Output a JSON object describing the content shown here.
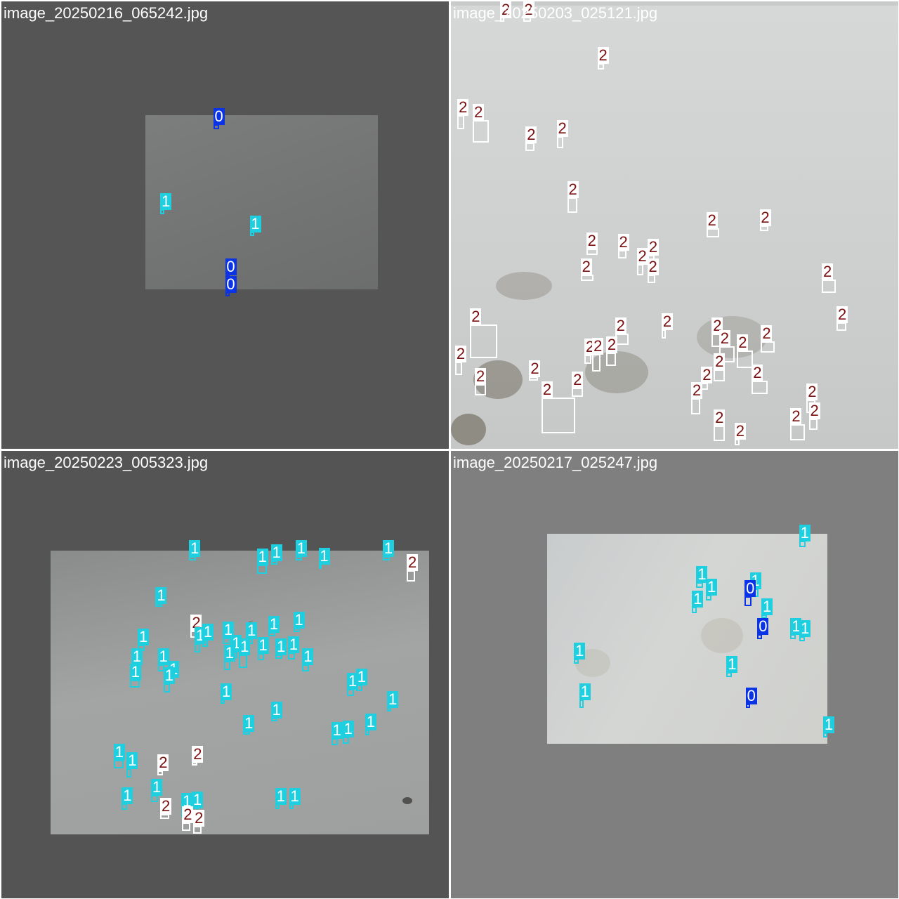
{
  "colors": {
    "class_0": "#0a33e6",
    "class_0_text": "#ffffff",
    "class_1": "#1ecfe0",
    "class_1_text": "#ffffff",
    "class_2": "#ffffff",
    "class_2_text": "#7a1010"
  },
  "mosaic": [
    {
      "filename": "image_20250216_065242.jpg",
      "detections": [
        {
          "cls": "0",
          "bx": 0.48,
          "by": 0.28,
          "bw": 0.013,
          "bh": 0.012
        },
        {
          "cls": "1",
          "bx": 0.36,
          "by": 0.47,
          "bw": 0.01,
          "bh": 0.01
        },
        {
          "cls": "1",
          "bx": 0.56,
          "by": 0.52,
          "bw": 0.01,
          "bh": 0.01
        },
        {
          "cls": "0",
          "bx": 0.505,
          "by": 0.615,
          "bw": 0.01,
          "bh": 0.01
        },
        {
          "cls": "0",
          "bx": 0.505,
          "by": 0.655,
          "bw": 0.01,
          "bh": 0.01
        }
      ]
    },
    {
      "filename": "image_20250203_025121.jpg",
      "detections": [
        {
          "cls": "2",
          "bx": 0.115,
          "by": 0.04,
          "bw": 0.01,
          "bh": 0.01
        },
        {
          "cls": "2",
          "bx": 0.17,
          "by": 0.04,
          "bw": 0.018,
          "bh": 0.012
        },
        {
          "cls": "2",
          "bx": 0.335,
          "by": 0.145,
          "bw": 0.015,
          "bh": 0.015
        },
        {
          "cls": "2",
          "bx": 0.022,
          "by": 0.27,
          "bw": 0.015,
          "bh": 0.03
        },
        {
          "cls": "2",
          "bx": 0.067,
          "by": 0.29,
          "bw": 0.036,
          "bh": 0.05
        },
        {
          "cls": "2",
          "bx": 0.177,
          "by": 0.325,
          "bw": 0.02,
          "bh": 0.02
        },
        {
          "cls": "2",
          "bx": 0.244,
          "by": 0.315,
          "bw": 0.015,
          "bh": 0.026
        },
        {
          "cls": "2",
          "bx": 0.271,
          "by": 0.455,
          "bw": 0.022,
          "bh": 0.035
        },
        {
          "cls": "2",
          "bx": 0.585,
          "by": 0.517,
          "bw": 0.028,
          "bh": 0.02
        },
        {
          "cls": "2",
          "bx": 0.7,
          "by": 0.507,
          "bw": 0.02,
          "bh": 0.013
        },
        {
          "cls": "2",
          "bx": 0.315,
          "by": 0.56,
          "bw": 0.025,
          "bh": 0.015
        },
        {
          "cls": "2",
          "bx": 0.447,
          "by": 0.575,
          "bw": 0.015,
          "bh": 0.015
        },
        {
          "cls": "2",
          "bx": 0.448,
          "by": 0.62,
          "bw": 0.018,
          "bh": 0.02
        },
        {
          "cls": "2",
          "bx": 0.304,
          "by": 0.618,
          "bw": 0.028,
          "bh": 0.015
        },
        {
          "cls": "2",
          "bx": 0.383,
          "by": 0.565,
          "bw": 0.02,
          "bh": 0.02
        },
        {
          "cls": "2",
          "bx": 0.423,
          "by": 0.6,
          "bw": 0.015,
          "bh": 0.025
        },
        {
          "cls": "2",
          "bx": 0.845,
          "by": 0.637,
          "bw": 0.032,
          "bh": 0.03
        },
        {
          "cls": "2",
          "bx": 0.873,
          "by": 0.727,
          "bw": 0.022,
          "bh": 0.02
        },
        {
          "cls": "2",
          "bx": 0.073,
          "by": 0.76,
          "bw": 0.06,
          "bh": 0.075
        },
        {
          "cls": "2",
          "bx": 0.382,
          "by": 0.755,
          "bw": 0.03,
          "bh": 0.025
        },
        {
          "cls": "2",
          "bx": 0.476,
          "by": 0.743,
          "bw": 0.01,
          "bh": 0.02
        },
        {
          "cls": "2",
          "bx": 0.593,
          "by": 0.757,
          "bw": 0.02,
          "bh": 0.03
        },
        {
          "cls": "2",
          "bx": 0.708,
          "by": 0.773,
          "bw": 0.03,
          "bh": 0.025
        },
        {
          "cls": "2",
          "bx": 0.017,
          "by": 0.82,
          "bw": 0.015,
          "bh": 0.03
        },
        {
          "cls": "2",
          "bx": 0.306,
          "by": 0.8,
          "bw": 0.015,
          "bh": 0.02
        },
        {
          "cls": "2",
          "bx": 0.325,
          "by": 0.808,
          "bw": 0.018,
          "bh": 0.04
        },
        {
          "cls": "2",
          "bx": 0.358,
          "by": 0.8,
          "bw": 0.022,
          "bh": 0.03
        },
        {
          "cls": "2",
          "bx": 0.617,
          "by": 0.789,
          "bw": 0.035,
          "bh": 0.035
        },
        {
          "cls": "2",
          "bx": 0.657,
          "by": 0.8,
          "bw": 0.035,
          "bh": 0.04
        },
        {
          "cls": "2",
          "bx": 0.6,
          "by": 0.836,
          "bw": 0.025,
          "bh": 0.026
        },
        {
          "cls": "2",
          "bx": 0.567,
          "by": 0.86,
          "bw": 0.015,
          "bh": 0.015
        },
        {
          "cls": "2",
          "bx": 0.69,
          "by": 0.862,
          "bw": 0.035,
          "bh": 0.03
        },
        {
          "cls": "2",
          "bx": 0.066,
          "by": 0.868,
          "bw": 0.025,
          "bh": 0.025
        },
        {
          "cls": "2",
          "bx": 0.185,
          "by": 0.843,
          "bw": 0.02,
          "bh": 0.01
        },
        {
          "cls": "2",
          "bx": 0.283,
          "by": 0.874,
          "bw": 0.025,
          "bh": 0.02
        },
        {
          "cls": "2",
          "bx": 0.547,
          "by": 0.905,
          "bw": 0.02,
          "bh": 0.035
        },
        {
          "cls": "2",
          "bx": 0.24,
          "by": 0.925,
          "bw": 0.075,
          "bh": 0.08
        },
        {
          "cls": "2",
          "bx": 0.805,
          "by": 0.905,
          "bw": 0.02,
          "bh": 0.03
        },
        {
          "cls": "2",
          "bx": 0.81,
          "by": 0.945,
          "bw": 0.02,
          "bh": 0.025
        },
        {
          "cls": "2",
          "bx": 0.775,
          "by": 0.963,
          "bw": 0.032,
          "bh": 0.037
        },
        {
          "cls": "2",
          "bx": 0.6,
          "by": 0.965,
          "bw": 0.025,
          "bh": 0.035
        },
        {
          "cls": "2",
          "bx": 0.64,
          "by": 0.985,
          "bw": 0.012,
          "bh": 0.015
        }
      ]
    },
    {
      "filename": "image_20250223_005323.jpg",
      "detections": [
        {
          "cls": "1",
          "bx": 0.427,
          "by": 0.24,
          "bw": 0.015,
          "bh": 0.01
        },
        {
          "cls": "1",
          "bx": 0.582,
          "by": 0.265,
          "bw": 0.022,
          "bh": 0.02
        },
        {
          "cls": "1",
          "bx": 0.61,
          "by": 0.25,
          "bw": 0.015,
          "bh": 0.01
        },
        {
          "cls": "1",
          "bx": 0.665,
          "by": 0.24,
          "bw": 0.015,
          "bh": 0.01
        },
        {
          "cls": "1",
          "bx": 0.712,
          "by": 0.258,
          "bw": 0.005,
          "bh": 0.012
        },
        {
          "cls": "1",
          "bx": 0.86,
          "by": 0.24,
          "bw": 0.015,
          "bh": 0.01
        },
        {
          "cls": "2",
          "bx": 0.915,
          "by": 0.28,
          "bw": 0.018,
          "bh": 0.025
        },
        {
          "cls": "1",
          "bx": 0.352,
          "by": 0.345,
          "bw": 0.015,
          "bh": 0.008
        },
        {
          "cls": "2",
          "bx": 0.433,
          "by": 0.41,
          "bw": 0.02,
          "bh": 0.015
        },
        {
          "cls": "1",
          "bx": 0.604,
          "by": 0.41,
          "bw": 0.015,
          "bh": 0.01
        },
        {
          "cls": "1",
          "bx": 0.66,
          "by": 0.4,
          "bw": 0.015,
          "bh": 0.01
        },
        {
          "cls": "1",
          "bx": 0.438,
          "by": 0.44,
          "bw": 0.012,
          "bh": 0.02
        },
        {
          "cls": "1",
          "bx": 0.455,
          "by": 0.43,
          "bw": 0.012,
          "bh": 0.015
        },
        {
          "cls": "1",
          "bx": 0.502,
          "by": 0.425,
          "bw": 0.015,
          "bh": 0.015
        },
        {
          "cls": "1",
          "bx": 0.554,
          "by": 0.425,
          "bw": 0.015,
          "bh": 0.012
        },
        {
          "cls": "1",
          "bx": 0.52,
          "by": 0.455,
          "bw": 0.015,
          "bh": 0.015
        },
        {
          "cls": "1",
          "bx": 0.54,
          "by": 0.47,
          "bw": 0.018,
          "bh": 0.03
        },
        {
          "cls": "1",
          "bx": 0.58,
          "by": 0.46,
          "bw": 0.015,
          "bh": 0.015
        },
        {
          "cls": "1",
          "bx": 0.62,
          "by": 0.46,
          "bw": 0.015,
          "bh": 0.01
        },
        {
          "cls": "1",
          "bx": 0.648,
          "by": 0.458,
          "bw": 0.015,
          "bh": 0.015
        },
        {
          "cls": "1",
          "bx": 0.505,
          "by": 0.48,
          "bw": 0.015,
          "bh": 0.02
        },
        {
          "cls": "1",
          "bx": 0.312,
          "by": 0.44,
          "bw": 0.015,
          "bh": 0.015
        },
        {
          "cls": "1",
          "bx": 0.298,
          "by": 0.482,
          "bw": 0.015,
          "bh": 0.01
        },
        {
          "cls": "1",
          "bx": 0.357,
          "by": 0.485,
          "bw": 0.015,
          "bh": 0.015
        },
        {
          "cls": "1",
          "bx": 0.38,
          "by": 0.51,
          "bw": 0.015,
          "bh": 0.01
        },
        {
          "cls": "1",
          "bx": 0.298,
          "by": 0.52,
          "bw": 0.022,
          "bh": 0.018
        },
        {
          "cls": "1",
          "bx": 0.37,
          "by": 0.53,
          "bw": 0.015,
          "bh": 0.02
        },
        {
          "cls": "1",
          "bx": 0.68,
          "by": 0.485,
          "bw": 0.015,
          "bh": 0.015
        },
        {
          "cls": "1",
          "bx": 0.495,
          "by": 0.56,
          "bw": 0.01,
          "bh": 0.01
        },
        {
          "cls": "1",
          "bx": 0.78,
          "by": 0.54,
          "bw": 0.015,
          "bh": 0.015
        },
        {
          "cls": "1",
          "bx": 0.8,
          "by": 0.53,
          "bw": 0.015,
          "bh": 0.015
        },
        {
          "cls": "1",
          "bx": 0.867,
          "by": 0.578,
          "bw": 0.01,
          "bh": 0.01
        },
        {
          "cls": "1",
          "bx": 0.61,
          "by": 0.6,
          "bw": 0.015,
          "bh": 0.008
        },
        {
          "cls": "1",
          "bx": 0.548,
          "by": 0.63,
          "bw": 0.015,
          "bh": 0.008
        },
        {
          "cls": "1",
          "bx": 0.745,
          "by": 0.65,
          "bw": 0.015,
          "bh": 0.015
        },
        {
          "cls": "1",
          "bx": 0.77,
          "by": 0.647,
          "bw": 0.015,
          "bh": 0.015
        },
        {
          "cls": "1",
          "bx": 0.818,
          "by": 0.63,
          "bw": 0.01,
          "bh": 0.012
        },
        {
          "cls": "1",
          "bx": 0.262,
          "by": 0.7,
          "bw": 0.022,
          "bh": 0.018
        },
        {
          "cls": "1",
          "bx": 0.285,
          "by": 0.72,
          "bw": 0.01,
          "bh": 0.02
        },
        {
          "cls": "2",
          "bx": 0.355,
          "by": 0.72,
          "bw": 0.012,
          "bh": 0.012
        },
        {
          "cls": "2",
          "bx": 0.432,
          "by": 0.7,
          "bw": 0.012,
          "bh": 0.008
        },
        {
          "cls": "1",
          "bx": 0.275,
          "by": 0.795,
          "bw": 0.012,
          "bh": 0.015
        },
        {
          "cls": "1",
          "bx": 0.342,
          "by": 0.777,
          "bw": 0.015,
          "bh": 0.015
        },
        {
          "cls": "2",
          "bx": 0.365,
          "by": 0.817,
          "bw": 0.02,
          "bh": 0.01
        },
        {
          "cls": "1",
          "bx": 0.41,
          "by": 0.81,
          "bw": 0.015,
          "bh": 0.02
        },
        {
          "cls": "1",
          "bx": 0.433,
          "by": 0.81,
          "bw": 0.015,
          "bh": 0.025
        },
        {
          "cls": "2",
          "bx": 0.413,
          "by": 0.84,
          "bw": 0.018,
          "bh": 0.018
        },
        {
          "cls": "2",
          "bx": 0.438,
          "by": 0.847,
          "bw": 0.018,
          "bh": 0.018
        },
        {
          "cls": "1",
          "bx": 0.617,
          "by": 0.795,
          "bw": 0.01,
          "bh": 0.01
        },
        {
          "cls": "1",
          "bx": 0.648,
          "by": 0.795,
          "bw": 0.01,
          "bh": 0.01
        }
      ]
    },
    {
      "filename": "image_20250217_025247.jpg",
      "detections": [
        {
          "cls": "1",
          "bx": 0.786,
          "by": 0.208,
          "bw": 0.015,
          "bh": 0.015
        },
        {
          "cls": "1",
          "bx": 0.556,
          "by": 0.3,
          "bw": 0.015,
          "bh": 0.012
        },
        {
          "cls": "1",
          "bx": 0.678,
          "by": 0.317,
          "bw": 0.02,
          "bh": 0.02
        },
        {
          "cls": "0",
          "bx": 0.664,
          "by": 0.336,
          "bw": 0.015,
          "bh": 0.022
        },
        {
          "cls": "1",
          "bx": 0.576,
          "by": 0.328,
          "bw": 0.012,
          "bh": 0.012
        },
        {
          "cls": "1",
          "bx": 0.544,
          "by": 0.356,
          "bw": 0.01,
          "bh": 0.014
        },
        {
          "cls": "1",
          "bx": 0.7,
          "by": 0.37,
          "bw": 0.012,
          "bh": 0.008
        },
        {
          "cls": "0",
          "bx": 0.69,
          "by": 0.415,
          "bw": 0.01,
          "bh": 0.01
        },
        {
          "cls": "1",
          "bx": 0.765,
          "by": 0.415,
          "bw": 0.012,
          "bh": 0.01
        },
        {
          "cls": "1",
          "bx": 0.785,
          "by": 0.42,
          "bw": 0.012,
          "bh": 0.012
        },
        {
          "cls": "1",
          "bx": 0.28,
          "by": 0.47,
          "bw": 0.01,
          "bh": 0.012
        },
        {
          "cls": "1",
          "bx": 0.622,
          "by": 0.5,
          "bw": 0.012,
          "bh": 0.01
        },
        {
          "cls": "0",
          "bx": 0.664,
          "by": 0.57,
          "bw": 0.01,
          "bh": 0.01
        },
        {
          "cls": "1",
          "bx": 0.292,
          "by": 0.565,
          "bw": 0.01,
          "bh": 0.02
        },
        {
          "cls": "1",
          "bx": 0.837,
          "by": 0.635,
          "bw": 0.01,
          "bh": 0.01
        }
      ]
    }
  ]
}
